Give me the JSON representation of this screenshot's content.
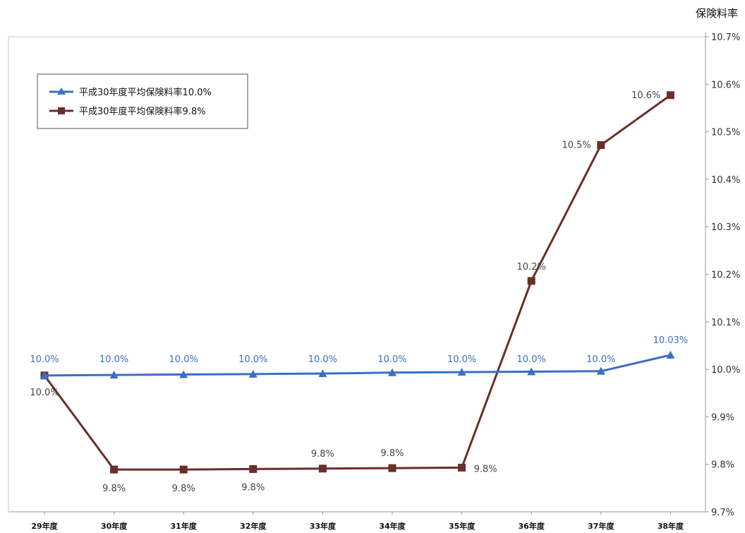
{
  "colors": {
    "series_blue": "#3a6fc4",
    "series_brown": "#6b2e2a",
    "axis": "#9a9a9a",
    "label_blue": "#3a6fc4",
    "label_dark": "#444444"
  },
  "chart_data": {
    "type": "line",
    "title": "",
    "xlabel": "",
    "ylabel": "保険料率",
    "ylim": [
      9.7,
      10.7
    ],
    "y_axis_side": "right",
    "y_ticks": [
      9.7,
      9.8,
      9.9,
      10.0,
      10.1,
      10.2,
      10.3,
      10.4,
      10.5,
      10.6,
      10.7
    ],
    "y_tick_labels": [
      "9.7%",
      "9.8%",
      "9.9%",
      "10.0%",
      "10.1%",
      "10.2%",
      "10.3%",
      "10.4%",
      "10.5%",
      "10.6%",
      "10.7%"
    ],
    "grid": false,
    "legend_position": "top-left",
    "categories": [
      "29年度",
      "30年度",
      "31年度",
      "32年度",
      "33年度",
      "34年度",
      "35年度",
      "36年度",
      "37年度",
      "38年度"
    ],
    "series": [
      {
        "name": "平成30年度平均保険料率10.0%",
        "marker": "triangle",
        "values": [
          9.987,
          9.988,
          9.989,
          9.99,
          9.991,
          9.993,
          9.994,
          9.995,
          9.996,
          10.03
        ],
        "data_labels": [
          "10.0%",
          "10.0%",
          "10.0%",
          "10.0%",
          "10.0%",
          "10.0%",
          "10.0%",
          "10.0%",
          "10.0%",
          "10.03%"
        ]
      },
      {
        "name": "平成30年度平均保険料率9.8%",
        "marker": "square",
        "values": [
          9.987,
          9.789,
          9.789,
          9.79,
          9.791,
          9.792,
          9.793,
          10.186,
          10.472,
          10.577
        ],
        "data_labels": [
          "10.0%",
          "9.8%",
          "9.8%",
          "9.8%",
          "9.8%",
          "9.8%",
          "9.8%",
          "10.2%",
          "10.5%",
          "10.6%"
        ]
      }
    ]
  }
}
